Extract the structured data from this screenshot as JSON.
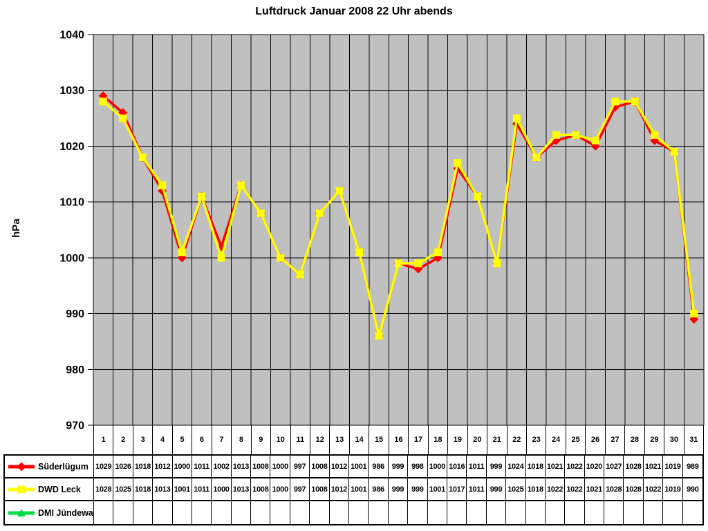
{
  "chart_data": {
    "type": "line",
    "title": "Luftdruck Januar 2008 22 Uhr abends",
    "ylabel": "hPa",
    "ylim": [
      970,
      1040
    ],
    "ytick_step": 10,
    "grid": true,
    "plot_bg": "#c0c0c0",
    "grid_color": "#000000",
    "legend_position": "table-left",
    "x": [
      1,
      2,
      3,
      4,
      5,
      6,
      7,
      8,
      9,
      10,
      11,
      12,
      13,
      14,
      15,
      16,
      17,
      18,
      19,
      20,
      21,
      22,
      23,
      24,
      25,
      26,
      27,
      28,
      29,
      30,
      31
    ],
    "series": [
      {
        "name": "Süderlügum",
        "color": "#ff0000",
        "marker": "diamond",
        "values": [
          1029,
          1026,
          1018,
          1012,
          1000,
          1011,
          1002,
          1013,
          1008,
          1000,
          997,
          1008,
          1012,
          1001,
          986,
          999,
          998,
          1000,
          1016,
          1011,
          999,
          1024,
          1018,
          1021,
          1022,
          1020,
          1027,
          1028,
          1021,
          1019,
          989
        ]
      },
      {
        "name": "DWD Leck",
        "color": "#ffff00",
        "marker": "square",
        "values": [
          1028,
          1025,
          1018,
          1013,
          1001,
          1011,
          1000,
          1013,
          1008,
          1000,
          997,
          1008,
          1012,
          1001,
          986,
          999,
          999,
          1001,
          1017,
          1011,
          999,
          1025,
          1018,
          1022,
          1022,
          1021,
          1028,
          1028,
          1022,
          1019,
          990
        ]
      },
      {
        "name": "DMI Jündewatt",
        "color": "#00dd44",
        "marker": "triangle",
        "values": []
      }
    ]
  }
}
